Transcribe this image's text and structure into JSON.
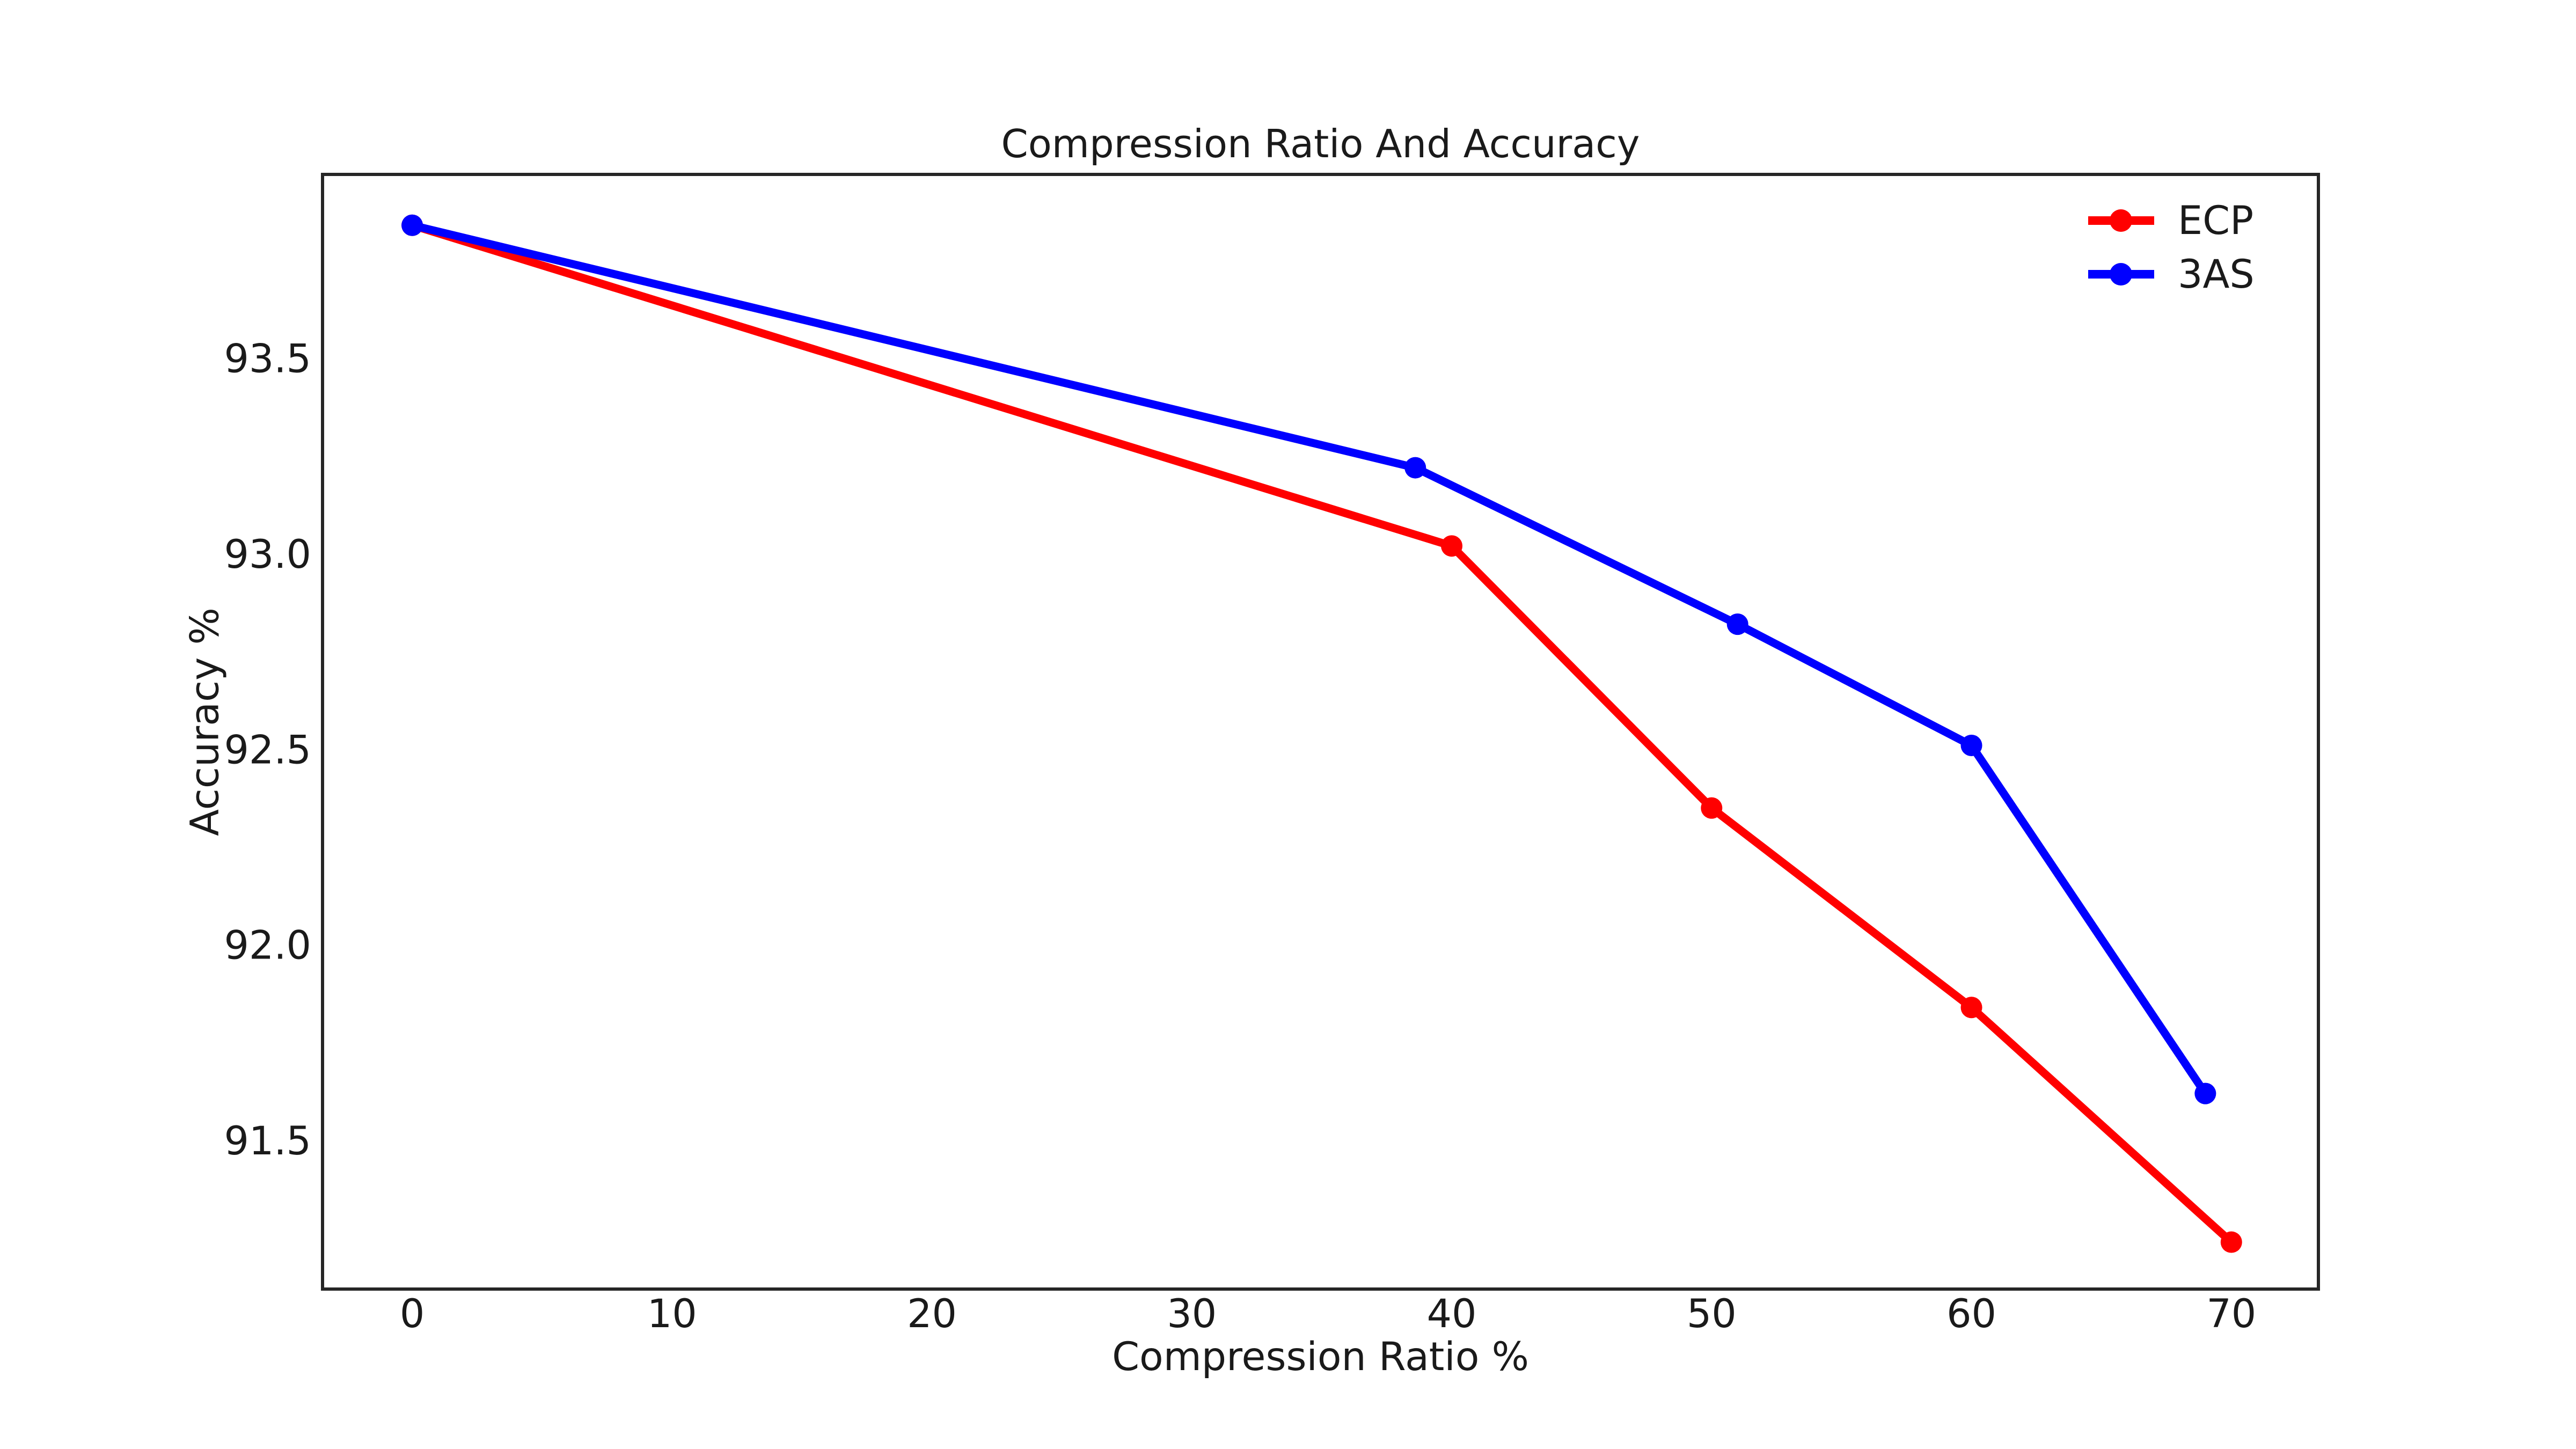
{
  "figure": {
    "background": "#ffffff",
    "text_color": "#1a1a1a",
    "spine_color": "#262626"
  },
  "chart_data": {
    "type": "line",
    "title": "Compression Ratio And Accuracy",
    "xlabel": "Compression Ratio %",
    "ylabel": "Accuracy %",
    "xlim": [
      -3.45,
      73.35
    ],
    "ylim": [
      91.12,
      93.97
    ],
    "grid": false,
    "legend_position": "upper right",
    "legend_frame": false,
    "xticks": [
      {
        "value": 0,
        "label": "0"
      },
      {
        "value": 10,
        "label": "10"
      },
      {
        "value": 20,
        "label": "20"
      },
      {
        "value": 30,
        "label": "30"
      },
      {
        "value": 40,
        "label": "40"
      },
      {
        "value": 50,
        "label": "50"
      },
      {
        "value": 60,
        "label": "60"
      },
      {
        "value": 70,
        "label": "70"
      }
    ],
    "yticks": [
      {
        "value": 91.5,
        "label": "91.5"
      },
      {
        "value": 92.0,
        "label": "92.0"
      },
      {
        "value": 92.5,
        "label": "92.5"
      },
      {
        "value": 93.0,
        "label": "93.0"
      },
      {
        "value": 93.5,
        "label": "93.5"
      }
    ],
    "series": [
      {
        "name": "ECP",
        "color": "#ff0000",
        "marker": "circle",
        "x": [
          0,
          40,
          50,
          60,
          70
        ],
        "y": [
          93.84,
          93.02,
          92.35,
          91.84,
          91.24
        ]
      },
      {
        "name": "3AS",
        "color": "#0000ff",
        "marker": "circle",
        "x": [
          0,
          38.6,
          51,
          60,
          69
        ],
        "y": [
          93.84,
          93.22,
          92.82,
          92.51,
          91.62
        ]
      }
    ]
  }
}
